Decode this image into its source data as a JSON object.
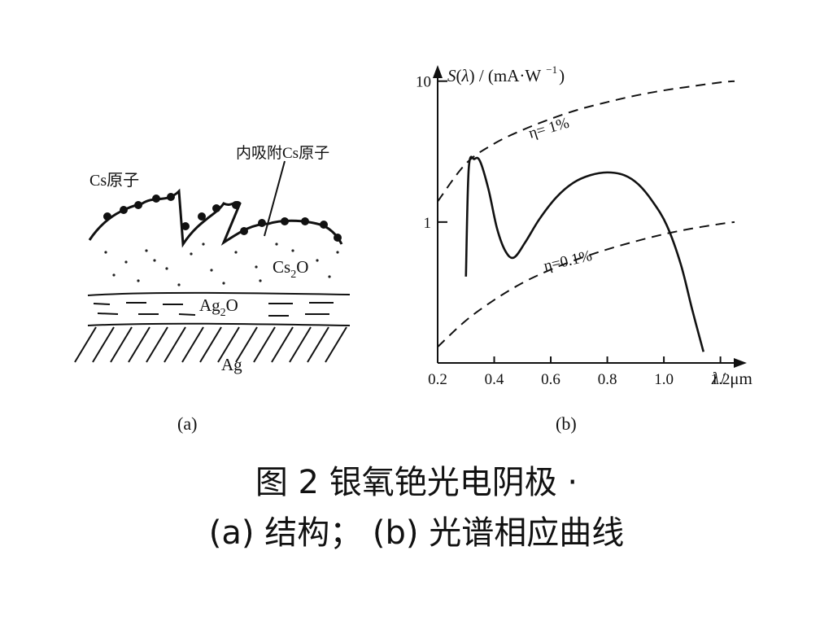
{
  "panel_a": {
    "label": "(a)",
    "cs_atoms_label": "Cs原子",
    "inner_cs_label": "内吸附Cs原子",
    "cs2o_label": {
      "main1": "Cs",
      "sub": "2",
      "main2": "O"
    },
    "ag2o_label": {
      "main1": "Ag",
      "sub": "2",
      "main2": "O"
    },
    "ag_label": "Ag"
  },
  "panel_b": {
    "label": "(b)",
    "y_axis_title": {
      "var": "S",
      "arg": "λ",
      "rest": ") / (mA·W",
      "exp": "−1",
      "close": ")"
    },
    "x_axis_title": {
      "var": "λ",
      "rest": "/ μm"
    },
    "eta_1_label": "η= 1%",
    "eta_01_label": "η=0.1%"
  },
  "caption": {
    "line1": "图 2 银氧铯光电阴极 ·",
    "line2": "(a) 结构；  (b) 光谱相应曲线"
  },
  "chart_data": {
    "type": "line",
    "title": "",
    "xlabel": "λ / μm",
    "ylabel": "S(λ) / (mA·W −1)",
    "x_ticks": [
      "0.2",
      "0.4",
      "0.6",
      "0.8",
      "1.0",
      "1.2"
    ],
    "y_ticks": [
      "1",
      "10"
    ],
    "xlim": [
      0.2,
      1.25
    ],
    "ylim": [
      0.1,
      12
    ],
    "y_scale": "log",
    "series": [
      {
        "style": "solid",
        "x": [
          0.3,
          0.31,
          0.33,
          0.35,
          0.38,
          0.41,
          0.44,
          0.47,
          0.51,
          0.56,
          0.62,
          0.68,
          0.74,
          0.8,
          0.86,
          0.91,
          0.96,
          1.01,
          1.06,
          1.1,
          1.14
        ],
        "y": [
          0.41,
          2.4,
          2.8,
          2.7,
          1.7,
          0.9,
          0.62,
          0.56,
          0.72,
          1.05,
          1.5,
          1.9,
          2.15,
          2.25,
          2.15,
          1.85,
          1.4,
          0.95,
          0.5,
          0.24,
          0.12
        ]
      },
      {
        "name": "η= 1%",
        "style": "dashed",
        "x": [
          0.2,
          0.3,
          0.4,
          0.5,
          0.6,
          0.7,
          0.8,
          0.9,
          1.0,
          1.1,
          1.2,
          1.25
        ],
        "y": [
          1.4,
          2.6,
          3.6,
          4.5,
          5.4,
          6.3,
          7.1,
          7.9,
          8.6,
          9.2,
          9.8,
          10.0
        ]
      },
      {
        "name": "η=0.1%",
        "style": "dashed",
        "x": [
          0.2,
          0.3,
          0.4,
          0.5,
          0.6,
          0.7,
          0.8,
          0.9,
          1.0,
          1.1,
          1.2,
          1.25
        ],
        "y": [
          0.13,
          0.2,
          0.28,
          0.37,
          0.46,
          0.55,
          0.64,
          0.73,
          0.82,
          0.9,
          0.97,
          1.0
        ]
      }
    ]
  }
}
